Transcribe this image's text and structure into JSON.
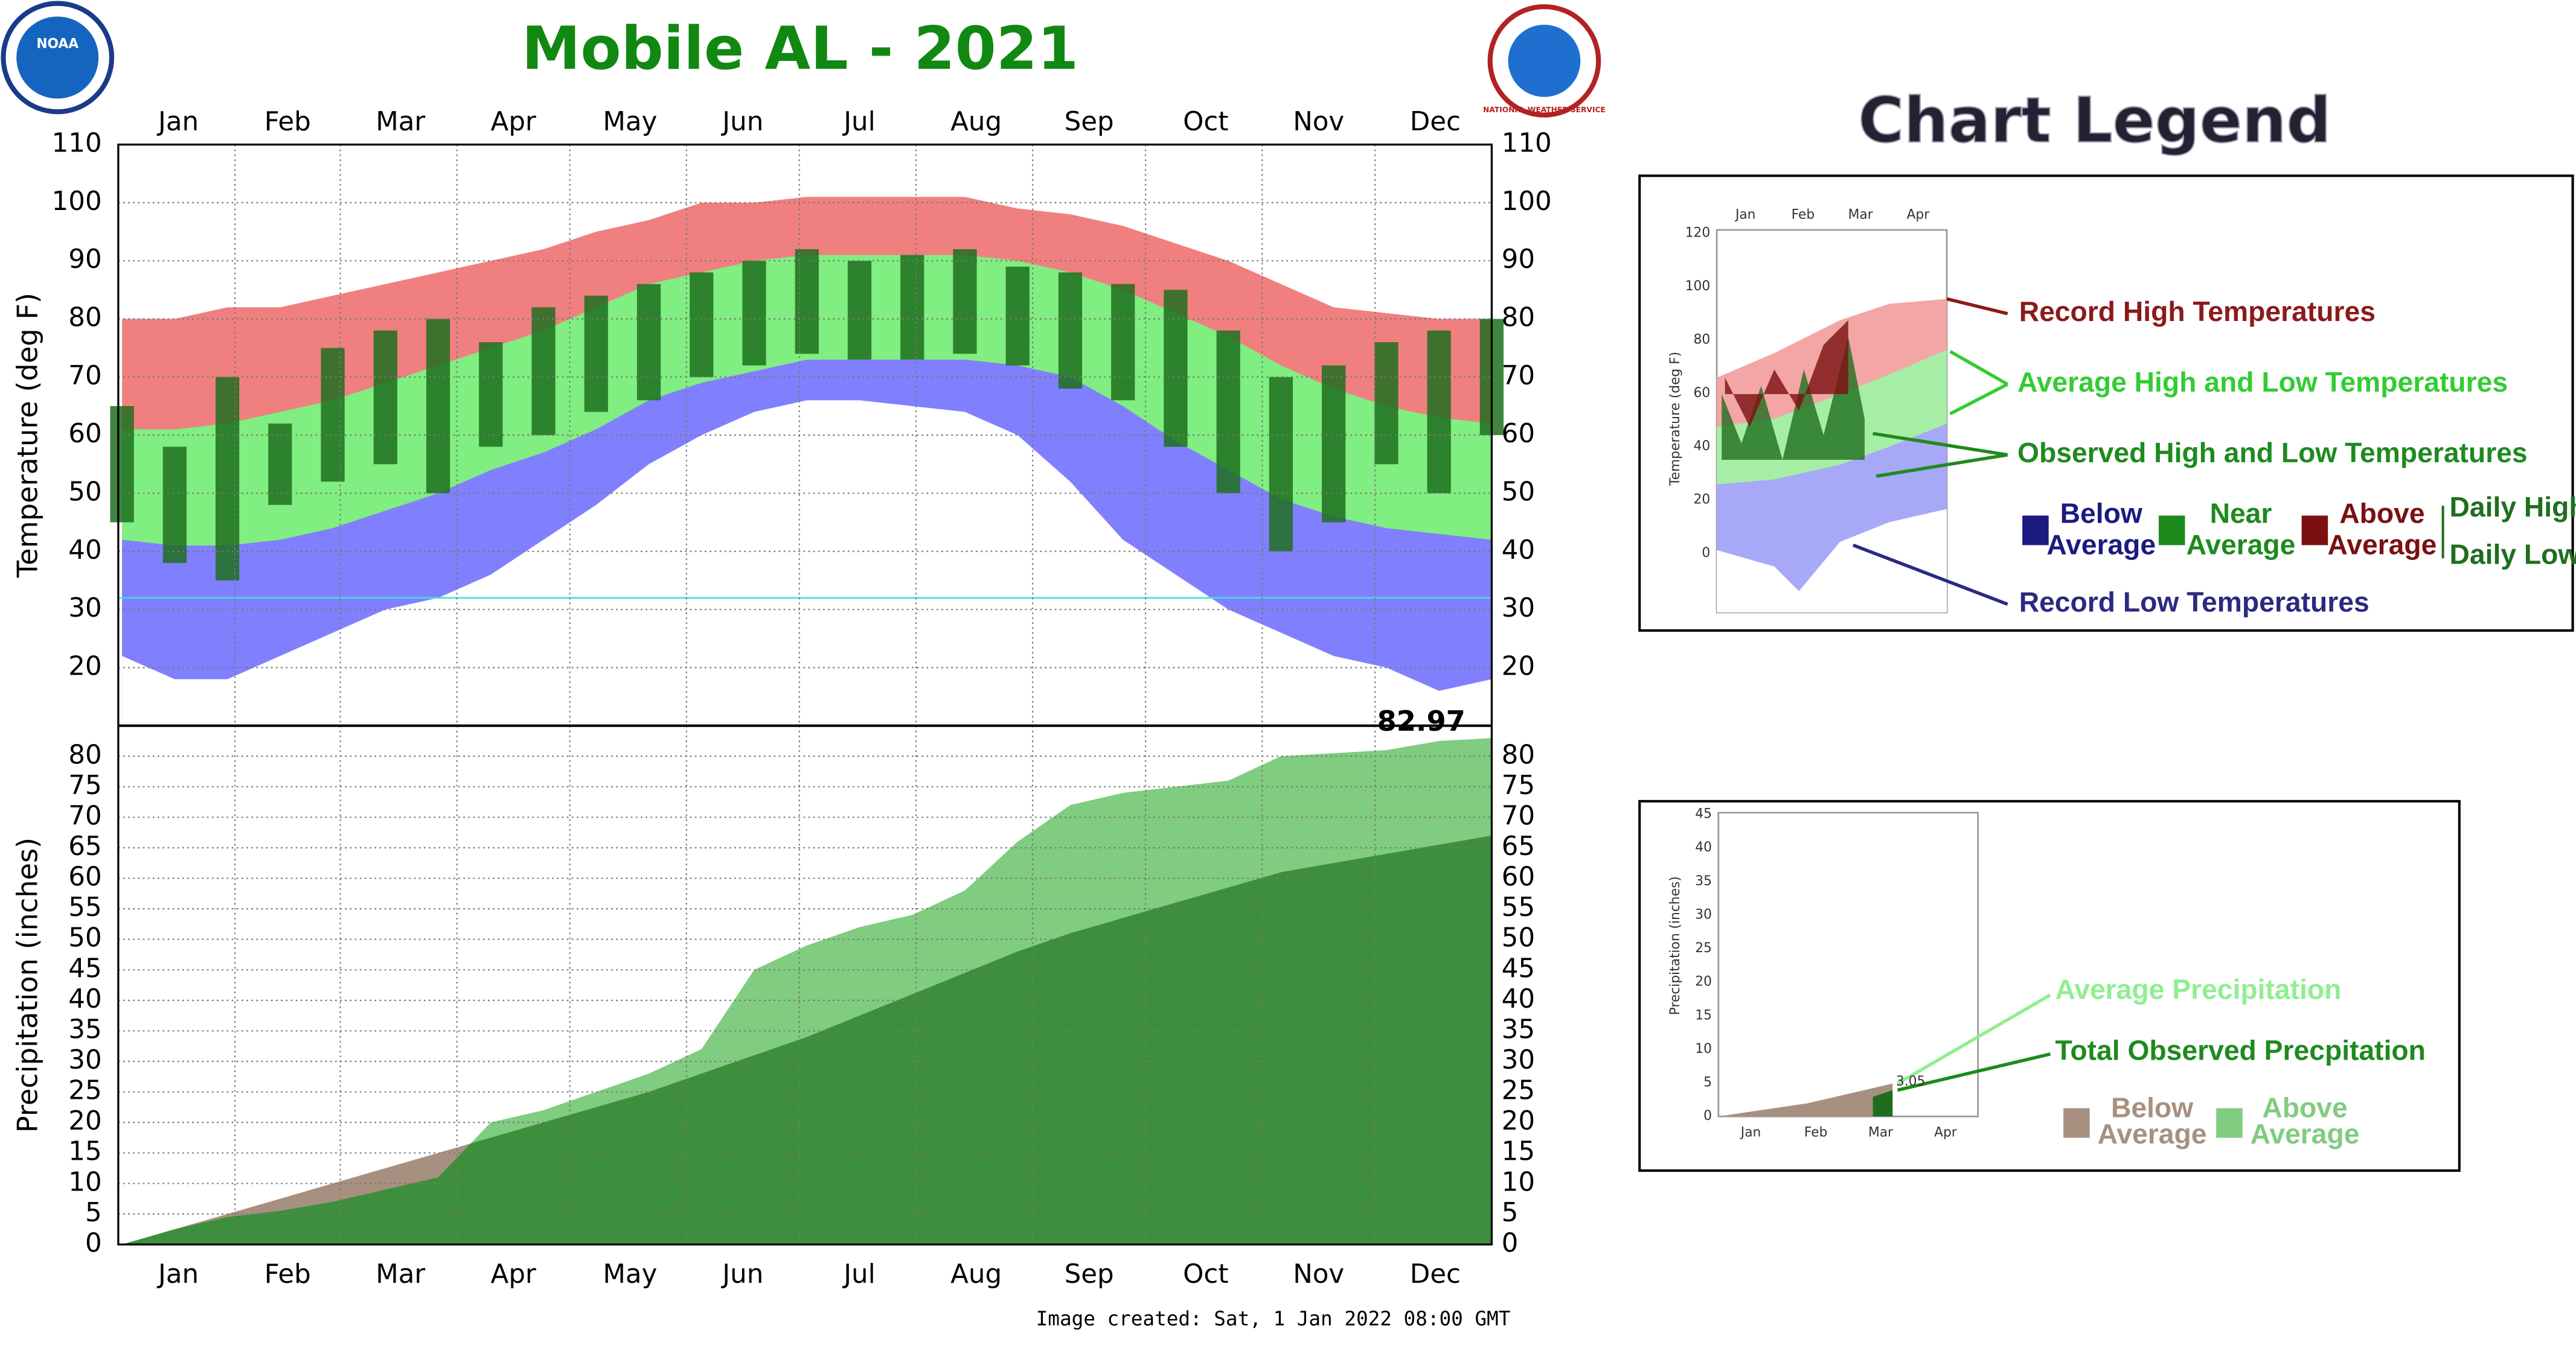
{
  "header": {
    "title": "Mobile AL - 2021",
    "logo_left": "NOAA",
    "logo_right": "NATIONAL WEATHER SERVICE"
  },
  "chart_data": [
    {
      "type": "temperature-band",
      "ylabel": "Temperature (deg F)",
      "xlim": [
        0,
        365
      ],
      "xticks": [
        {
          "value": 16,
          "label": "Jan"
        },
        {
          "value": 45,
          "label": "Feb"
        },
        {
          "value": 75,
          "label": "Mar"
        },
        {
          "value": 105,
          "label": "Apr"
        },
        {
          "value": 136,
          "label": "May"
        },
        {
          "value": 166,
          "label": "Jun"
        },
        {
          "value": 197,
          "label": "Jul"
        },
        {
          "value": 228,
          "label": "Aug"
        },
        {
          "value": 258,
          "label": "Sep"
        },
        {
          "value": 289,
          "label": "Oct"
        },
        {
          "value": 319,
          "label": "Nov"
        },
        {
          "value": 350,
          "label": "Dec"
        }
      ],
      "xgrid": [
        31,
        59,
        90,
        120,
        151,
        181,
        212,
        243,
        273,
        304,
        334
      ],
      "ylim": [
        10,
        110
      ],
      "yticks": [
        20,
        30,
        40,
        50,
        60,
        70,
        80,
        90,
        100,
        110
      ],
      "grid": true,
      "x": [
        1,
        15,
        29,
        43,
        57,
        71,
        85,
        99,
        113,
        127,
        141,
        155,
        169,
        183,
        197,
        211,
        225,
        239,
        253,
        267,
        281,
        295,
        309,
        323,
        337,
        351,
        365
      ],
      "record_high": {
        "color": "#f08080",
        "values": [
          80,
          80,
          82,
          82,
          84,
          86,
          88,
          90,
          92,
          95,
          97,
          100,
          100,
          101,
          101,
          101,
          101,
          99,
          98,
          96,
          93,
          90,
          86,
          82,
          81,
          80,
          80
        ]
      },
      "avg_high": {
        "color": "#80ee80",
        "values": [
          61,
          61,
          62,
          64,
          66,
          69,
          72,
          75,
          78,
          82,
          86,
          88,
          90,
          91,
          91,
          91,
          91,
          90,
          88,
          85,
          81,
          77,
          72,
          68,
          65,
          63,
          62
        ]
      },
      "avg_low": {
        "color": "#8080ff",
        "values": [
          42,
          41,
          41,
          42,
          44,
          47,
          50,
          54,
          57,
          61,
          66,
          69,
          71,
          73,
          73,
          73,
          73,
          72,
          70,
          65,
          59,
          54,
          49,
          46,
          44,
          43,
          42
        ]
      },
      "record_low": {
        "color": "#ffffff",
        "values": [
          22,
          18,
          18,
          22,
          26,
          30,
          32,
          36,
          42,
          48,
          55,
          60,
          64,
          66,
          66,
          65,
          64,
          60,
          52,
          42,
          36,
          30,
          26,
          22,
          20,
          16,
          18
        ]
      },
      "observed": {
        "color": "#1f6e1f",
        "high": [
          65,
          58,
          70,
          62,
          75,
          78,
          80,
          76,
          82,
          84,
          86,
          88,
          90,
          92,
          90,
          91,
          92,
          89,
          88,
          86,
          85,
          78,
          70,
          72,
          76,
          78,
          80
        ],
        "low": [
          45,
          38,
          35,
          48,
          52,
          55,
          50,
          58,
          60,
          64,
          66,
          70,
          72,
          74,
          73,
          73,
          74,
          72,
          68,
          66,
          58,
          50,
          40,
          45,
          55,
          50,
          60
        ]
      },
      "reference_line": {
        "value": 32,
        "color": "#40e0e0"
      }
    },
    {
      "type": "precipitation-area",
      "ylabel": "Precipitation (inches)",
      "xlim": [
        0,
        365
      ],
      "xticks": [
        {
          "value": 16,
          "label": "Jan"
        },
        {
          "value": 45,
          "label": "Feb"
        },
        {
          "value": 75,
          "label": "Mar"
        },
        {
          "value": 105,
          "label": "Apr"
        },
        {
          "value": 136,
          "label": "May"
        },
        {
          "value": 166,
          "label": "Jun"
        },
        {
          "value": 197,
          "label": "Jul"
        },
        {
          "value": 228,
          "label": "Aug"
        },
        {
          "value": 258,
          "label": "Sep"
        },
        {
          "value": 289,
          "label": "Oct"
        },
        {
          "value": 319,
          "label": "Nov"
        },
        {
          "value": 350,
          "label": "Dec"
        }
      ],
      "xgrid": [
        31,
        59,
        90,
        120,
        151,
        181,
        212,
        243,
        273,
        304,
        334
      ],
      "ylim": [
        0,
        85
      ],
      "yticks": [
        0,
        5,
        10,
        15,
        20,
        25,
        30,
        35,
        40,
        45,
        50,
        55,
        60,
        65,
        70,
        75,
        80
      ],
      "grid": true,
      "x": [
        1,
        15,
        29,
        43,
        57,
        71,
        85,
        99,
        113,
        127,
        141,
        155,
        169,
        183,
        197,
        211,
        225,
        239,
        253,
        267,
        281,
        295,
        309,
        323,
        337,
        351,
        365
      ],
      "observed": {
        "color": "#80cc80",
        "values": [
          0,
          2.5,
          4.5,
          5.5,
          7,
          9,
          11,
          20,
          22,
          25,
          28,
          32,
          45,
          49,
          52,
          54,
          58,
          66,
          72,
          74,
          75,
          76,
          80,
          80.5,
          81,
          82.5,
          82.97
        ]
      },
      "normal": {
        "color": "#3d8f3d",
        "below_color": "#a89080",
        "values": [
          0,
          2.5,
          5,
          7.5,
          10,
          12.5,
          15,
          17.5,
          20,
          22.5,
          25,
          28,
          31,
          34,
          37.5,
          41,
          44.5,
          48,
          51,
          53.5,
          56,
          58.5,
          61,
          62.5,
          64,
          65.5,
          67
        ]
      }
    }
  ],
  "footer": "Image created: Sat, 1 Jan 2022 08:00 GMT",
  "legend": {
    "title": "Chart Legend",
    "temperature": {
      "ylabel": "Temperature (deg F)",
      "yticks": [
        120,
        100,
        80,
        60,
        40,
        20,
        0
      ],
      "months": [
        "Jan",
        "Feb",
        "Mar",
        "Apr"
      ],
      "record_high": "Record High Temperatures",
      "average": "Average High and Low Temperatures",
      "observed": "Observed High and Low Temperatures",
      "below": [
        "Below",
        "Average"
      ],
      "near": [
        "Near",
        "Average"
      ],
      "above": [
        "Above",
        "Average"
      ],
      "daily_high": "Daily High",
      "daily_low": "Daily Low",
      "record_low": "Record Low Temperatures"
    },
    "precipitation": {
      "ylabel": "Precipitation (inches)",
      "yticks": [
        45,
        40,
        35,
        30,
        25,
        20,
        15,
        10,
        5,
        0
      ],
      "months": [
        "Jan",
        "Feb",
        "Mar",
        "Apr"
      ],
      "total_label": "3.05",
      "average": "Average Precipitation",
      "observed": "Total Observed Precpitation",
      "below": [
        "Below",
        "Average"
      ],
      "above": [
        "Above",
        "Average"
      ]
    }
  }
}
